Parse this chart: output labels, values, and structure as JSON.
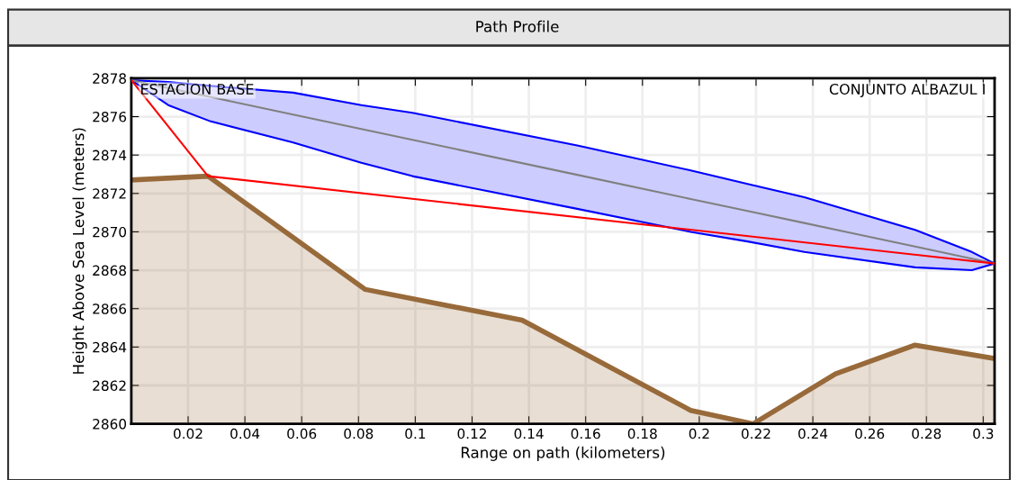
{
  "chart_data": {
    "type": "line",
    "title": "Path Profile",
    "xlabel": "Range on path (kilometers)",
    "ylabel": "Height Above Sea Level (meters)",
    "annotations": [
      "ESTACION BASE",
      "CONJUNTO ALBAZUL I"
    ],
    "xlim": [
      0,
      0.304
    ],
    "xticks": [
      0.02,
      0.04,
      0.06,
      0.08,
      0.1,
      0.12,
      0.14,
      0.16,
      0.18,
      0.2,
      0.22,
      0.24,
      0.26,
      0.28,
      0.3
    ],
    "ylim": [
      2860,
      2878
    ],
    "yticks": [
      2860,
      2862,
      2864,
      2866,
      2868,
      2870,
      2872,
      2874,
      2876,
      2878
    ],
    "grid": true,
    "legend": false,
    "series": [
      {
        "type": "area",
        "color": "#986a3a",
        "x": [
          0,
          0.027,
          0.0824,
          0.1376,
          0.197,
          0.219,
          0.248,
          0.276,
          0.304
        ],
        "values": [
          2872.7,
          2872.9,
          2867.0,
          2865.4,
          2860.7,
          2860.0,
          2862.6,
          2864.1,
          2863.4
        ]
      },
      {
        "color": "#808080",
        "x": [
          0,
          0.013,
          0.028,
          0.057,
          0.081,
          0.099,
          0.157,
          0.197,
          0.217,
          0.237,
          0.276,
          0.296,
          0.304
        ],
        "values": [
          2877.9,
          2877.49,
          2877.02,
          2876.11,
          2875.36,
          2874.79,
          2872.97,
          2871.71,
          2871.09,
          2870.46,
          2869.23,
          2868.6,
          2868.35
        ],
        "upper": [
          2877.9,
          2877.8,
          2877.6,
          2877.25,
          2876.6,
          2876.2,
          2874.5,
          2873.2,
          2872.5,
          2871.8,
          2870.1,
          2868.95,
          2868.35
        ],
        "lower": [
          2877.9,
          2876.6,
          2875.75,
          2874.65,
          2873.6,
          2872.9,
          2871.2,
          2870.0,
          2869.5,
          2868.95,
          2868.15,
          2868.0,
          2868.35
        ]
      },
      {
        "color": "#ff0000",
        "x": [
          0,
          0.027,
          0.304
        ],
        "values": [
          2877.9,
          2872.9,
          2868.35
        ]
      }
    ]
  }
}
